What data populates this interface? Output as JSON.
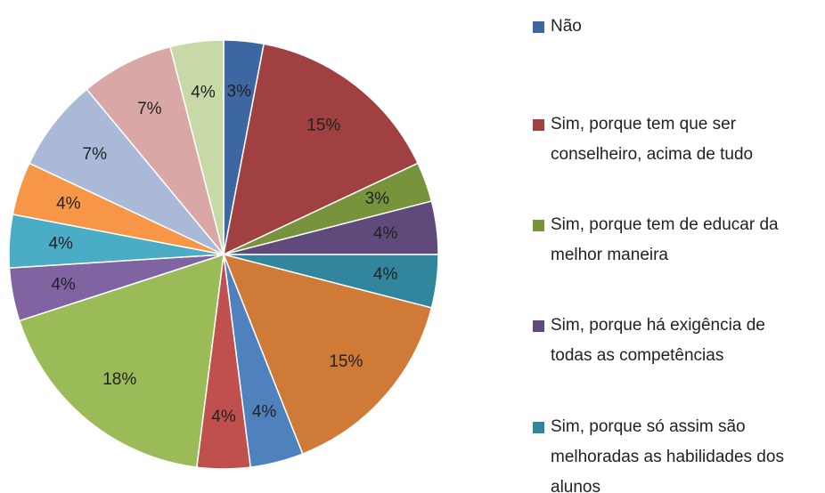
{
  "chart_data": {
    "type": "pie",
    "categories": [
      "Não",
      "Sim, porque tem que ser conselheiro, acima de tudo",
      "Sim, porque tem de educar da melhor maneira",
      "Sim, porque há exigência de todas as competências",
      "Sim, porque só assim são melhoradas as habilidades dos alunos",
      null,
      null,
      null,
      null,
      null,
      null,
      null,
      null,
      null,
      null
    ],
    "values": [
      3,
      15,
      3,
      4,
      4,
      15,
      4,
      4,
      18,
      4,
      4,
      4,
      7,
      7,
      4
    ],
    "value_labels": [
      "3%",
      "15%",
      "3%",
      "4%",
      "4%",
      "15%",
      "4%",
      "4%",
      "18%",
      "4%",
      "4%",
      "4%",
      "7%",
      "7%",
      "4%"
    ],
    "colors": [
      "#3c67a0",
      "#a04040",
      "#77933c",
      "#604a7b",
      "#31859c",
      "#d07a37",
      "#4f81bd",
      "#c0504d",
      "#9bbb59",
      "#8064a2",
      "#4bacc6",
      "#f79646",
      "#aab9d8",
      "#d9a7a6",
      "#c6d9a6"
    ]
  }
}
